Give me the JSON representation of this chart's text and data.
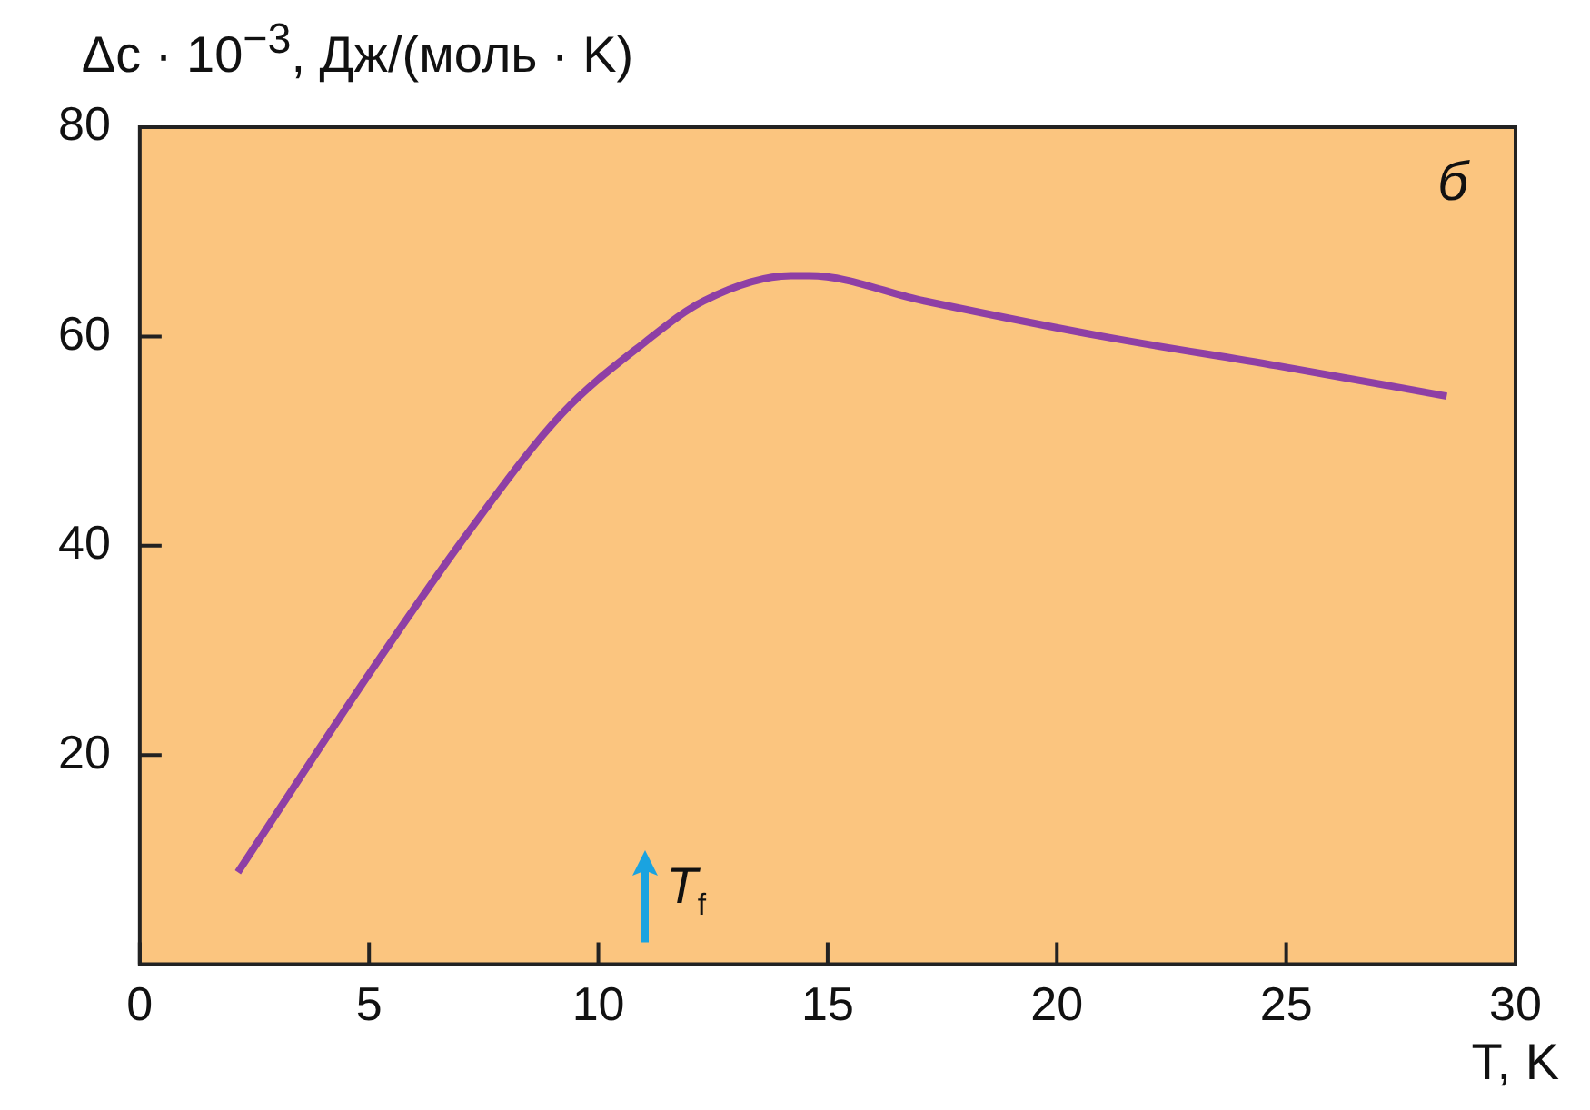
{
  "chart_data": {
    "type": "line",
    "xlabel": "T, K",
    "ylabel": "Δc · 10$^{−3}$, Дж/(моль · K)",
    "x": [
      2.14,
      5.04,
      7.2,
      9.2,
      11.0,
      12.3,
      14.2,
      14.6,
      17.1,
      21.0,
      24.8,
      28.5
    ],
    "series": [
      {
        "color": "#8e3fa5",
        "values": [
          8.8,
          28,
          41.5,
          52.6,
          59.4,
          63.4,
          65.8,
          65.8,
          63.4,
          60,
          57.2,
          54.3
        ]
      }
    ],
    "xlim": [
      0,
      30
    ],
    "xticks": [
      0,
      5,
      10,
      15,
      20,
      25,
      30
    ],
    "ylim": [
      0,
      80
    ],
    "yticks": [
      20,
      40,
      60,
      80
    ],
    "marker": "none",
    "line_style": "solid",
    "legend": false,
    "annotations": [
      "T$_{f}$",
      "б"
    ]
  }
}
